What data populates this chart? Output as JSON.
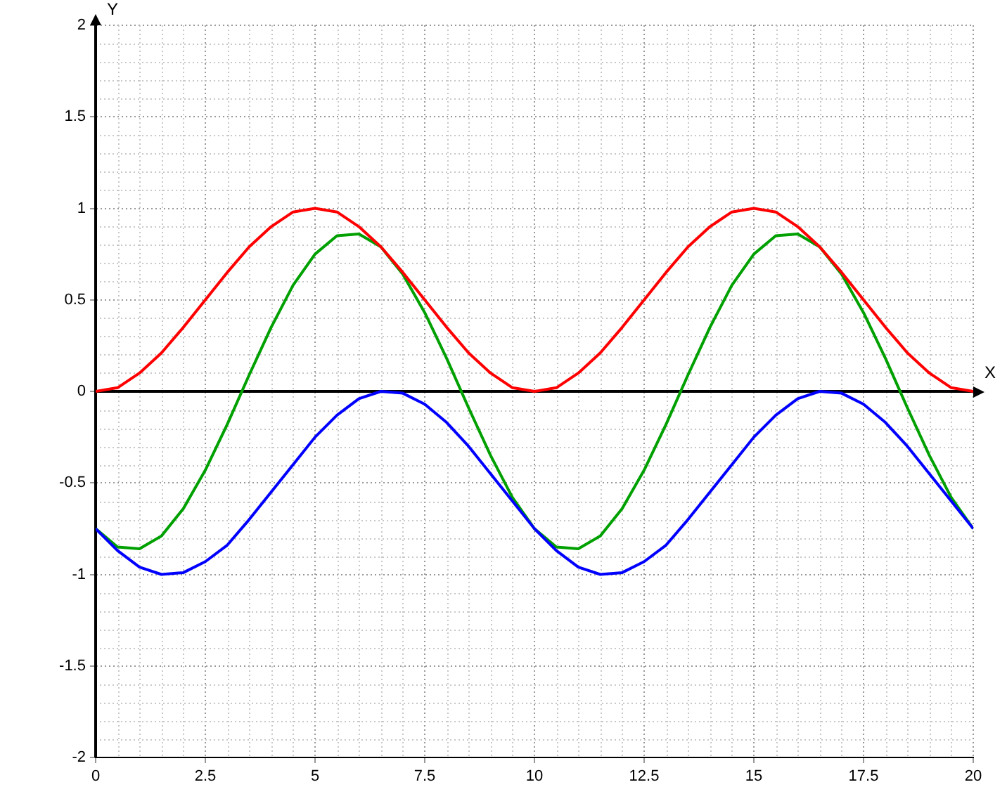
{
  "chart_data": {
    "type": "line",
    "xlabel": "X",
    "ylabel": "Y",
    "x": [
      0,
      0.5,
      1,
      1.5,
      2,
      2.5,
      3,
      3.5,
      4,
      4.5,
      5,
      5.5,
      6,
      6.5,
      7,
      7.5,
      8,
      8.5,
      9,
      9.5,
      10,
      10.5,
      11,
      11.5,
      12,
      12.5,
      13,
      13.5,
      14,
      14.5,
      15,
      15.5,
      16,
      16.5,
      17,
      17.5,
      18,
      18.5,
      19,
      19.5,
      20
    ],
    "series": [
      {
        "color": "#ff0000",
        "values": [
          0,
          0.02,
          0.1,
          0.21,
          0.35,
          0.5,
          0.65,
          0.79,
          0.9,
          0.98,
          1,
          0.98,
          0.9,
          0.79,
          0.65,
          0.5,
          0.35,
          0.21,
          0.1,
          0.02,
          0,
          0.02,
          0.1,
          0.21,
          0.35,
          0.5,
          0.65,
          0.79,
          0.9,
          0.98,
          1,
          0.98,
          0.9,
          0.79,
          0.65,
          0.5,
          0.35,
          0.21,
          0.1,
          0.02,
          0
        ]
      },
      {
        "color": "#0000ff",
        "values": [
          -0.75,
          -0.87,
          -0.96,
          -1,
          -0.99,
          -0.93,
          -0.84,
          -0.7,
          -0.55,
          -0.4,
          -0.25,
          -0.13,
          -0.04,
          0,
          -0.01,
          -0.07,
          -0.17,
          -0.3,
          -0.45,
          -0.6,
          -0.75,
          -0.87,
          -0.96,
          -1,
          -0.99,
          -0.93,
          -0.84,
          -0.7,
          -0.55,
          -0.4,
          -0.25,
          -0.13,
          -0.04,
          0,
          -0.01,
          -0.07,
          -0.17,
          -0.3,
          -0.45,
          -0.6,
          -0.75
        ]
      },
      {
        "color": "#00a000",
        "values": [
          -0.75,
          -0.85,
          -0.86,
          -0.79,
          -0.64,
          -0.43,
          -0.18,
          0.09,
          0.35,
          0.58,
          0.75,
          0.85,
          0.86,
          0.79,
          0.64,
          0.43,
          0.18,
          -0.09,
          -0.35,
          -0.58,
          -0.75,
          -0.85,
          -0.86,
          -0.79,
          -0.64,
          -0.43,
          -0.18,
          0.09,
          0.35,
          0.58,
          0.75,
          0.85,
          0.86,
          0.79,
          0.64,
          0.43,
          0.18,
          -0.09,
          -0.35,
          -0.58,
          -0.75
        ]
      }
    ],
    "xlim": [
      0,
      20
    ],
    "xticks": [
      0,
      2.5,
      5,
      7.5,
      10,
      12.5,
      15,
      17.5,
      20
    ],
    "ylim": [
      -2,
      2
    ],
    "yticks": [
      -2,
      -1.5,
      -1,
      -0.5,
      0,
      0.5,
      1,
      1.5,
      2
    ],
    "grid": true,
    "legend": false,
    "marker": "none",
    "line_style": "solid"
  }
}
